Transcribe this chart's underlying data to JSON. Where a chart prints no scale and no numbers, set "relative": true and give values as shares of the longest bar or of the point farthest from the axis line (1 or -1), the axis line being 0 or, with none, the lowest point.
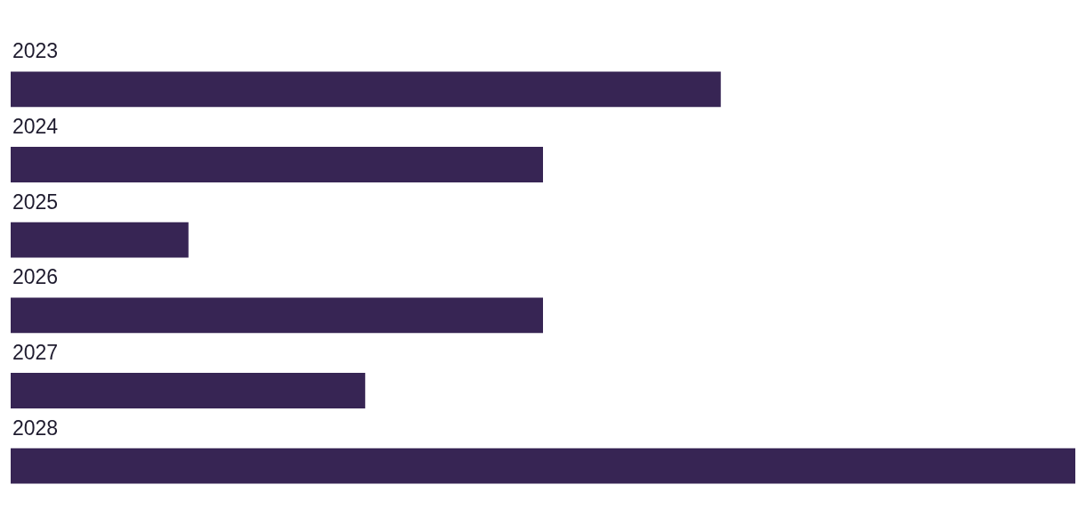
{
  "chart_data": {
    "type": "bar",
    "orientation": "horizontal",
    "relative": true,
    "categories": [
      "2023",
      "2024",
      "2025",
      "2026",
      "2027",
      "2028"
    ],
    "values": [
      0.667,
      0.5,
      0.167,
      0.5,
      0.333,
      1
    ],
    "color": "#372554"
  }
}
